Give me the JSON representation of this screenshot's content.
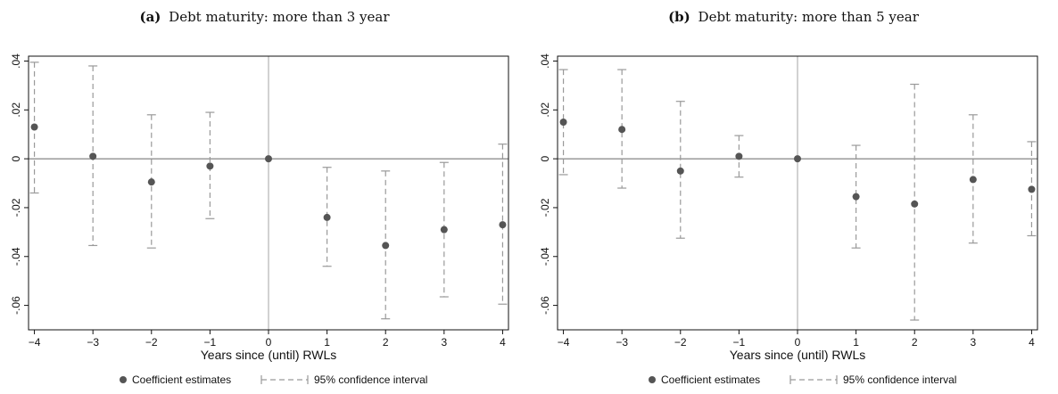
{
  "chart_data": [
    {
      "type": "scatter",
      "panel_label": "(a)",
      "title": "Debt maturity: more than 3 year",
      "xlabel": "Years since (until) RWLs",
      "ylabel": "",
      "x": [
        -4,
        -3,
        -2,
        -1,
        0,
        1,
        2,
        3,
        4
      ],
      "estimates": [
        0.013,
        0.001,
        -0.0095,
        -0.003,
        0.0,
        -0.024,
        -0.0355,
        -0.029,
        -0.027
      ],
      "ci_low": [
        -0.014,
        -0.0355,
        -0.0365,
        -0.0245,
        0.0,
        -0.044,
        -0.0655,
        -0.0565,
        -0.0595
      ],
      "ci_high": [
        0.0395,
        0.038,
        0.018,
        0.019,
        0.0,
        -0.0035,
        -0.005,
        -0.0015,
        0.006
      ],
      "xlim": [
        -4.1,
        4.1
      ],
      "ylim": [
        -0.07,
        0.042
      ],
      "xticks": [
        -4,
        -3,
        -2,
        -1,
        0,
        1,
        2,
        3,
        4
      ],
      "yticks": [
        0.04,
        0.02,
        0,
        -0.02,
        -0.04,
        -0.06
      ],
      "ytick_labels": [
        ".04",
        ".02",
        "0",
        "-.02",
        "-.04",
        "-.06"
      ],
      "reference_lines": {
        "y": 0,
        "x": 0
      },
      "legend": {
        "placement": "bottom",
        "entries": [
          "Coefficient estimates",
          "95% confidence interval"
        ]
      }
    },
    {
      "type": "scatter",
      "panel_label": "(b)",
      "title": "Debt maturity: more than 5 year",
      "xlabel": "Years since (until) RWLs",
      "ylabel": "",
      "x": [
        -4,
        -3,
        -2,
        -1,
        0,
        1,
        2,
        3,
        4
      ],
      "estimates": [
        0.015,
        0.012,
        -0.005,
        0.001,
        0.0,
        -0.0155,
        -0.0185,
        -0.0085,
        -0.0125
      ],
      "ci_low": [
        -0.0065,
        -0.012,
        -0.0325,
        -0.0075,
        0.0,
        -0.0365,
        -0.066,
        -0.0345,
        -0.0315
      ],
      "ci_high": [
        0.0365,
        0.0365,
        0.0235,
        0.0095,
        0.0,
        0.0055,
        0.0305,
        0.018,
        0.007
      ],
      "xlim": [
        -4.1,
        4.1
      ],
      "ylim": [
        -0.07,
        0.042
      ],
      "xticks": [
        -4,
        -3,
        -2,
        -1,
        0,
        1,
        2,
        3,
        4
      ],
      "yticks": [
        0.04,
        0.02,
        0,
        -0.02,
        -0.04,
        -0.06
      ],
      "ytick_labels": [
        ".04",
        ".02",
        "0",
        "-.02",
        "-.04",
        "-.06"
      ],
      "reference_lines": {
        "y": 0,
        "x": 0
      },
      "legend": {
        "placement": "bottom",
        "entries": [
          "Coefficient estimates",
          "95% confidence interval"
        ]
      }
    }
  ],
  "colors": {
    "marker": "#555555",
    "ci": "#999999",
    "zero_line": "#666666",
    "vertical_line": "#b3b3b3",
    "axis": "#111111"
  }
}
